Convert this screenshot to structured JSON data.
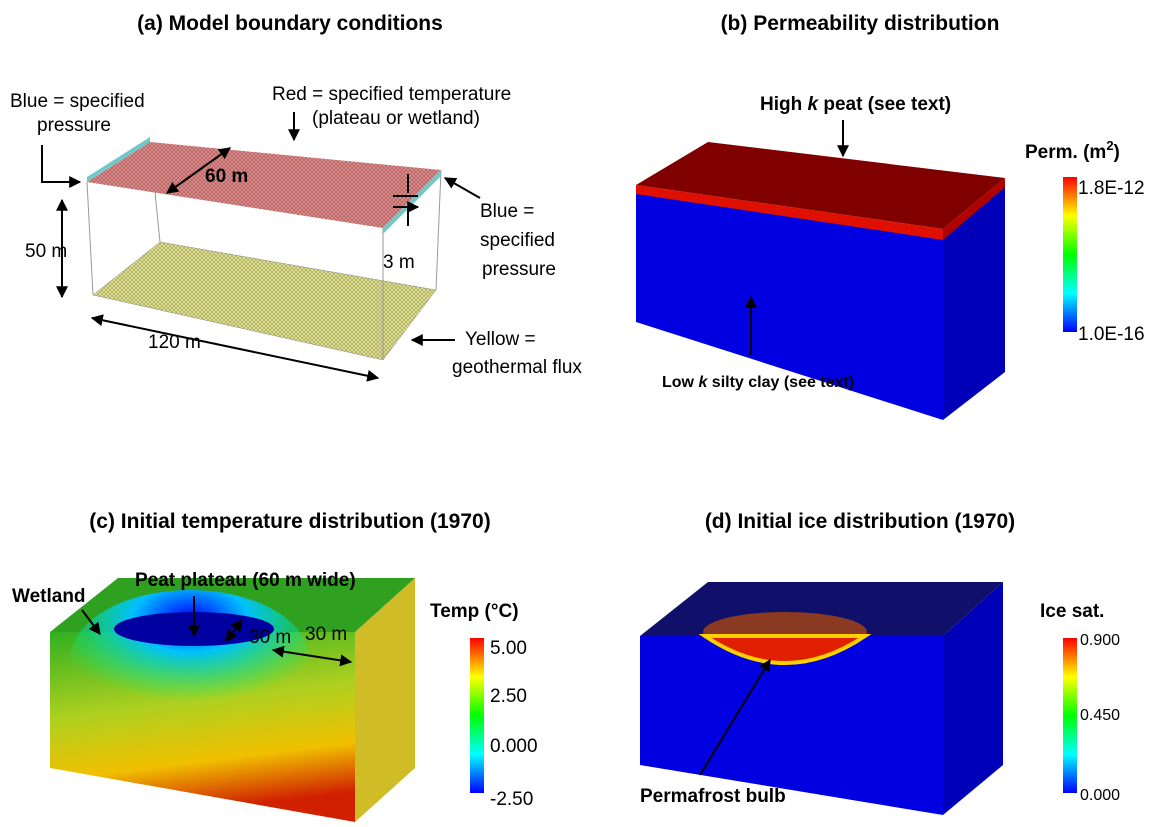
{
  "panels": [
    {
      "title": "(a) Model boundary conditions",
      "labels": {
        "blue_left": [
          "Blue = specified",
          "pressure"
        ],
        "red_top": [
          "Red = specified temperature",
          "(plateau or wetland)"
        ],
        "width": "60 m",
        "blue_right": [
          "Blue =",
          "specified",
          "pressure"
        ],
        "depth": "50 m",
        "peat": "3 m",
        "length": "120 m",
        "yellow": [
          "Yellow =",
          "geothermal flux"
        ]
      }
    },
    {
      "title": "(b) Permeability distribution",
      "labels": {
        "top": [
          "High ",
          "k",
          " peat (see text)"
        ],
        "bottom": [
          "Low ",
          "k",
          " silty clay (see text)"
        ]
      },
      "colorbar": {
        "title": [
          "Perm. (m",
          "2",
          ")"
        ],
        "ticks": [
          "1.8E-12",
          "1.0E-16"
        ]
      }
    },
    {
      "title": "(c) Initial temperature distribution (1970)",
      "labels": {
        "wetland": "Wetland",
        "plateau": "Peat plateau (60 m wide)",
        "dist1": "30 m",
        "dist2": "30 m"
      },
      "colorbar": {
        "title": "Temp (°C)",
        "ticks": [
          "5.00",
          "2.50",
          "0.000",
          "-2.50"
        ]
      }
    },
    {
      "title": "(d) Initial ice distribution (1970)",
      "labels": {
        "bulb": "Permafrost bulb"
      },
      "colorbar": {
        "title": "Ice sat.",
        "ticks": [
          "0.900",
          "0.450",
          "0.000"
        ]
      }
    }
  ]
}
